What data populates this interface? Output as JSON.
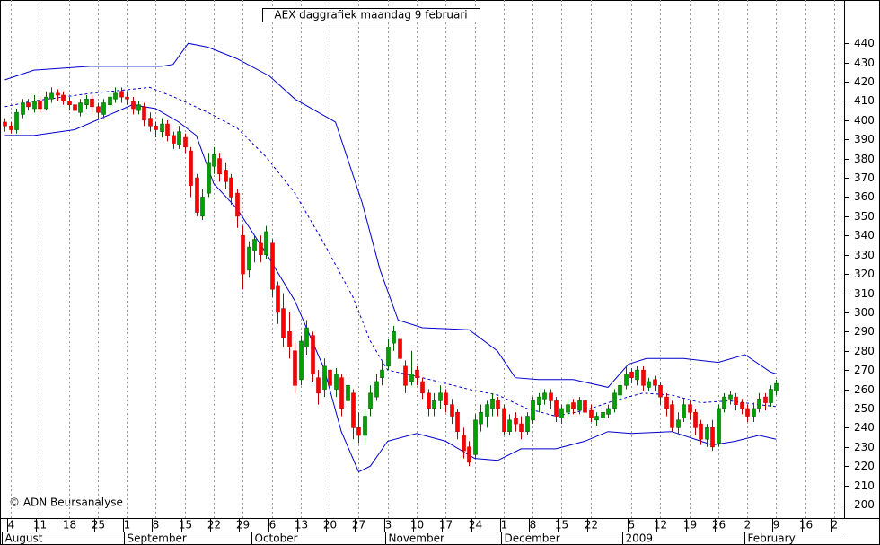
{
  "chart_data": {
    "type": "candlestick",
    "title": "AEX daggrafiek maandag 9 februari",
    "credit": "© ADN Beursanalyse",
    "up_color": "#00a000",
    "down_color": "#ff0000",
    "band_color": "#0000cc",
    "xlim": [
      -0.85,
      144.7
    ],
    "ylim": [
      193,
      462.5
    ],
    "yticks": [
      200,
      210,
      220,
      230,
      240,
      250,
      260,
      270,
      280,
      290,
      300,
      310,
      320,
      330,
      340,
      350,
      360,
      370,
      380,
      390,
      400,
      410,
      420,
      430,
      440
    ],
    "xticks": [
      {
        "value": 1,
        "label": "4"
      },
      {
        "value": 6,
        "label": "11"
      },
      {
        "value": 11,
        "label": "18"
      },
      {
        "value": 16,
        "label": "25"
      },
      {
        "value": 21,
        "label": "1"
      },
      {
        "value": 26,
        "label": "8"
      },
      {
        "value": 31,
        "label": "15"
      },
      {
        "value": 36,
        "label": "22"
      },
      {
        "value": 41,
        "label": "29"
      },
      {
        "value": 46,
        "label": "6"
      },
      {
        "value": 51,
        "label": "13"
      },
      {
        "value": 56,
        "label": "20"
      },
      {
        "value": 61,
        "label": "27"
      },
      {
        "value": 66,
        "label": "3"
      },
      {
        "value": 71,
        "label": "10"
      },
      {
        "value": 76,
        "label": "17"
      },
      {
        "value": 81,
        "label": "24"
      },
      {
        "value": 86,
        "label": "1"
      },
      {
        "value": 91,
        "label": "8"
      },
      {
        "value": 96,
        "label": "15"
      },
      {
        "value": 101,
        "label": "22"
      },
      {
        "value": 108,
        "label": "5"
      },
      {
        "value": 113,
        "label": "12"
      },
      {
        "value": 118,
        "label": "19"
      },
      {
        "value": 123,
        "label": "26"
      },
      {
        "value": 128,
        "label": "2"
      },
      {
        "value": 133,
        "label": "9"
      },
      {
        "value": 138,
        "label": "16"
      },
      {
        "value": 143,
        "label": "2"
      }
    ],
    "xmonths": [
      {
        "value": 0,
        "label": "August"
      },
      {
        "value": 21,
        "label": "September"
      },
      {
        "value": 43,
        "label": "October"
      },
      {
        "value": 66,
        "label": "November"
      },
      {
        "value": 86,
        "label": "December"
      },
      {
        "value": 107,
        "label": "2009"
      },
      {
        "value": 128,
        "label": "February"
      }
    ],
    "open": [
      399,
      397,
      395,
      403,
      409,
      406,
      410,
      406,
      411,
      414,
      413,
      410,
      408,
      404,
      408,
      411,
      407,
      403,
      408,
      411,
      415,
      412,
      410,
      405,
      407,
      401,
      397,
      394,
      398,
      392,
      387,
      391,
      384,
      370,
      350,
      362,
      376,
      380,
      374,
      370,
      362,
      340,
      322,
      332,
      336,
      330,
      336,
      314,
      302,
      290,
      280,
      265,
      282,
      288,
      266,
      260,
      270,
      260,
      266,
      254,
      258,
      240,
      236,
      250,
      256,
      266,
      272,
      284,
      286,
      272,
      264,
      270,
      264,
      258,
      250,
      254,
      258,
      252,
      248,
      236,
      230,
      226,
      242,
      246,
      250,
      254,
      250,
      238,
      245,
      242,
      238,
      244,
      252,
      255,
      258,
      254,
      245,
      248,
      253,
      249,
      254,
      249,
      244,
      245,
      247,
      250,
      257,
      262,
      269,
      265,
      270,
      261,
      265,
      262,
      256,
      252,
      240,
      245,
      252,
      248,
      242,
      234,
      240,
      232,
      250,
      255,
      256,
      253,
      250,
      246,
      250,
      256,
      253,
      259
    ],
    "high": [
      401,
      399,
      406,
      411,
      411,
      413,
      412,
      415,
      417,
      416,
      415,
      412,
      410,
      411,
      413,
      413,
      409,
      411,
      414,
      417,
      417,
      415,
      412,
      410,
      409,
      404,
      399,
      401,
      400,
      394,
      397,
      393,
      386,
      372,
      364,
      383,
      386,
      383,
      378,
      372,
      364,
      345,
      337,
      340,
      340,
      345,
      338,
      316,
      310,
      300,
      284,
      288,
      296,
      290,
      270,
      276,
      274,
      271,
      268,
      265,
      260,
      248,
      249,
      262,
      268,
      275,
      286,
      293,
      288,
      275,
      280,
      272,
      266,
      260,
      258,
      262,
      260,
      255,
      250,
      240,
      233,
      247,
      252,
      254,
      258,
      256,
      252,
      247,
      248,
      246,
      248,
      256,
      258,
      260,
      260,
      256,
      252,
      254,
      255,
      256,
      256,
      252,
      248,
      250,
      252,
      260,
      264,
      272,
      271,
      272,
      272,
      266,
      267,
      264,
      258,
      254,
      248,
      255,
      254,
      250,
      244,
      242,
      244,
      252,
      258,
      259,
      258,
      255,
      252,
      253,
      258,
      258,
      262,
      265
    ],
    "low": [
      394,
      393,
      393,
      401,
      405,
      404,
      404,
      405,
      409,
      410,
      408,
      405,
      402,
      402,
      406,
      404,
      401,
      401,
      406,
      409,
      409,
      408,
      403,
      403,
      397,
      394,
      391,
      391,
      389,
      385,
      385,
      383,
      360,
      350,
      348,
      360,
      372,
      368,
      364,
      356,
      344,
      312,
      318,
      326,
      326,
      328,
      308,
      294,
      282,
      276,
      258,
      262,
      278,
      264,
      252,
      256,
      258,
      256,
      246,
      250,
      234,
      232,
      232,
      246,
      254,
      262,
      270,
      280,
      273,
      258,
      262,
      262,
      255,
      246,
      246,
      250,
      248,
      242,
      234,
      224,
      220,
      224,
      238,
      240,
      246,
      246,
      236,
      236,
      238,
      234,
      236,
      242,
      248,
      252,
      250,
      243,
      242,
      246,
      247,
      247,
      245,
      243,
      241,
      243,
      245,
      248,
      255,
      260,
      263,
      262,
      259,
      259,
      259,
      252,
      246,
      238,
      237,
      243,
      244,
      236,
      231,
      230,
      228,
      230,
      248,
      252,
      249,
      247,
      243,
      243,
      248,
      249,
      251,
      257
    ],
    "close": [
      397,
      395,
      404,
      409,
      407,
      410,
      406,
      412,
      414,
      413,
      410,
      408,
      405,
      409,
      411,
      407,
      404,
      409,
      412,
      414,
      412,
      411,
      406,
      408,
      400,
      397,
      395,
      398,
      392,
      388,
      394,
      386,
      366,
      352,
      360,
      378,
      382,
      372,
      368,
      360,
      350,
      320,
      334,
      338,
      330,
      342,
      312,
      300,
      287,
      282,
      262,
      285,
      292,
      268,
      258,
      272,
      262,
      268,
      250,
      262,
      240,
      236,
      246,
      258,
      264,
      270,
      282,
      290,
      276,
      262,
      268,
      266,
      258,
      250,
      254,
      258,
      252,
      246,
      238,
      228,
      222,
      244,
      248,
      252,
      255,
      250,
      238,
      244,
      242,
      238,
      246,
      254,
      256,
      258,
      254,
      246,
      250,
      252,
      250,
      254,
      248,
      245,
      246,
      248,
      250,
      258,
      262,
      268,
      266,
      270,
      262,
      264,
      262,
      256,
      250,
      240,
      244,
      252,
      248,
      240,
      234,
      240,
      230,
      250,
      256,
      257,
      252,
      250,
      246,
      250,
      255,
      253,
      260,
      263
    ],
    "bands": [
      {
        "dashed": false,
        "x": [
          0,
          5,
          14.6,
          27,
          29,
          31.6,
          35,
          40,
          45.6,
          50,
          57,
          61.6,
          64.7,
          67.8,
          72,
          80,
          84.9,
          88,
          92,
          98,
          104,
          107.5,
          110.6,
          117,
          123,
          127.6,
          132,
          133
        ],
        "values": [
          421,
          426,
          428,
          428,
          429,
          440,
          438,
          432,
          423,
          411,
          399,
          357,
          322,
          296,
          292,
          291,
          280,
          266,
          265,
          265,
          261,
          273,
          276,
          276,
          274,
          278,
          269,
          268
        ]
      },
      {
        "dashed": true,
        "x": [
          0,
          5,
          15,
          25,
          30,
          35,
          40,
          45,
          50,
          55,
          60,
          63,
          66,
          72,
          80,
          85,
          90,
          95,
          100,
          105,
          110,
          115,
          120,
          125,
          130,
          133
        ],
        "values": [
          407,
          410,
          414,
          417,
          411,
          404,
          396,
          381,
          362,
          336,
          308,
          285,
          270,
          266,
          260,
          257,
          250,
          246,
          249,
          254,
          258,
          257,
          253,
          254,
          252,
          251
        ]
      },
      {
        "dashed": false,
        "x": [
          0,
          5,
          12,
          22,
          26,
          30,
          33,
          36,
          40,
          45,
          50,
          55,
          58,
          61,
          63,
          66,
          71,
          76,
          81,
          85,
          89,
          95,
          100,
          104,
          108,
          115,
          120,
          122,
          126,
          130,
          133
        ],
        "values": [
          392,
          392,
          395,
          408,
          406,
          399,
          392,
          367,
          354,
          331,
          306,
          271,
          238,
          217,
          220,
          233,
          237,
          233,
          224,
          223,
          229,
          229,
          233,
          238,
          237,
          238,
          233,
          231,
          233,
          236,
          234
        ]
      }
    ]
  }
}
